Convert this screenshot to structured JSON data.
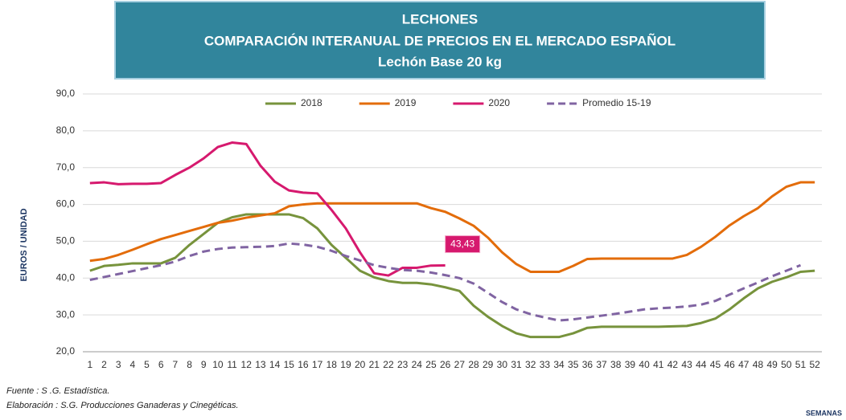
{
  "chart_data": {
    "type": "line",
    "title": [
      "LECHONES",
      "COMPARACIÓN INTERANUAL DE PRECIOS EN EL MERCADO ESPAÑOL",
      "Lechón Base 20 kg"
    ],
    "y_label": "EUROS / UNIDAD",
    "x_label": "SEMANAS",
    "notes": [
      "Fuente : S .G. Estadística.",
      "Elaboración : S.G. Producciones Ganaderas y Cinegéticas."
    ],
    "categories": [
      "1",
      "2",
      "3",
      "4",
      "5",
      "6",
      "7",
      "8",
      "9",
      "10",
      "11",
      "12",
      "13",
      "14",
      "15",
      "16",
      "17",
      "18",
      "19",
      "20",
      "21",
      "22",
      "23",
      "24",
      "25",
      "26",
      "27",
      "28",
      "29",
      "30",
      "31",
      "32",
      "33",
      "34",
      "35",
      "36",
      "37",
      "38",
      "39",
      "40",
      "41",
      "42",
      "43",
      "44",
      "45",
      "46",
      "47",
      "48",
      "49",
      "50",
      "51",
      "52"
    ],
    "ylim": [
      20,
      90
    ],
    "yticks": [
      {
        "value": 20,
        "label": "20,0"
      },
      {
        "value": 30,
        "label": "30,0"
      },
      {
        "value": 40,
        "label": "40,0"
      },
      {
        "value": 50,
        "label": "50,0"
      },
      {
        "value": 60,
        "label": "60,0"
      },
      {
        "value": 70,
        "label": "70,0"
      },
      {
        "value": 80,
        "label": "80,0"
      },
      {
        "value": 90,
        "label": "90,0"
      }
    ],
    "grid": true,
    "legend": "top",
    "series": [
      {
        "name": "2018",
        "color": "#77933c",
        "values": [
          42,
          43.3,
          43.6,
          44,
          44,
          44,
          45.5,
          49,
          52,
          55,
          56.5,
          57.3,
          57.3,
          57.3,
          57.3,
          56.3,
          53.5,
          49,
          45.5,
          42,
          40.2,
          39.2,
          38.7,
          38.7,
          38.3,
          37.5,
          36.5,
          32.5,
          29.5,
          27,
          25,
          24,
          24,
          24,
          25,
          26.5,
          26.8,
          26.8,
          26.8,
          26.8,
          26.8,
          26.9,
          27,
          27.8,
          29,
          31.5,
          34.5,
          37.2,
          39,
          40.2,
          41.7,
          42
        ]
      },
      {
        "name": "2019",
        "color": "#e36c0a",
        "values": [
          44.7,
          45.2,
          46.3,
          47.7,
          49.2,
          50.6,
          51.7,
          52.8,
          53.9,
          55,
          55.6,
          56.4,
          57,
          57.6,
          59.5,
          60,
          60.3,
          60.3,
          60.3,
          60.3,
          60.3,
          60.3,
          60.3,
          60.3,
          59,
          58,
          56.2,
          54.2,
          51,
          47,
          43.8,
          41.7,
          41.7,
          41.7,
          43.3,
          45.2,
          45.3,
          45.3,
          45.3,
          45.3,
          45.3,
          45.3,
          46.3,
          48.5,
          51.2,
          54.3,
          56.8,
          59,
          62.2,
          64.8,
          66,
          66
        ]
      },
      {
        "name": "2020",
        "color": "#d6196e",
        "values": [
          65.8,
          66,
          65.5,
          65.6,
          65.6,
          65.8,
          68,
          70,
          72.5,
          75.6,
          76.8,
          76.4,
          70.5,
          66.2,
          63.8,
          63.2,
          63,
          58.5,
          53.5,
          47,
          41.3,
          40.7,
          42.8,
          42.8,
          43.4,
          43.43,
          null,
          null,
          null,
          null,
          null,
          null,
          null,
          null,
          null,
          null,
          null,
          null,
          null,
          null,
          null,
          null,
          null,
          null,
          null,
          null,
          null,
          null,
          null,
          null,
          null,
          null
        ],
        "value_labels": [
          null,
          null,
          null,
          null,
          null,
          null,
          null,
          null,
          null,
          null,
          null,
          null,
          null,
          null,
          null,
          null,
          null,
          null,
          null,
          null,
          null,
          null,
          null,
          null,
          null,
          "43,43",
          null,
          null,
          null,
          null,
          null,
          null,
          null,
          null,
          null,
          null,
          null,
          null,
          null,
          null,
          null,
          null,
          null,
          null,
          null,
          null,
          null,
          null,
          null,
          null,
          null,
          null
        ]
      },
      {
        "name": "Promedio 15-19",
        "color": "#8064a2",
        "dashed": true,
        "values": [
          39.5,
          40.3,
          41.1,
          41.9,
          42.7,
          43.5,
          44.5,
          46,
          47.2,
          47.9,
          48.3,
          48.4,
          48.5,
          48.7,
          49.4,
          49.1,
          48.5,
          47.4,
          46,
          44.8,
          43.5,
          42.8,
          42.2,
          42,
          41.5,
          40.8,
          40,
          38.5,
          36,
          33.5,
          31.5,
          30.2,
          29.3,
          28.5,
          28.8,
          29.3,
          29.8,
          30.3,
          30.9,
          31.5,
          31.8,
          32,
          32.3,
          32.8,
          33.8,
          35.5,
          37.2,
          38.8,
          40.5,
          42,
          43.5,
          null
        ]
      }
    ]
  }
}
